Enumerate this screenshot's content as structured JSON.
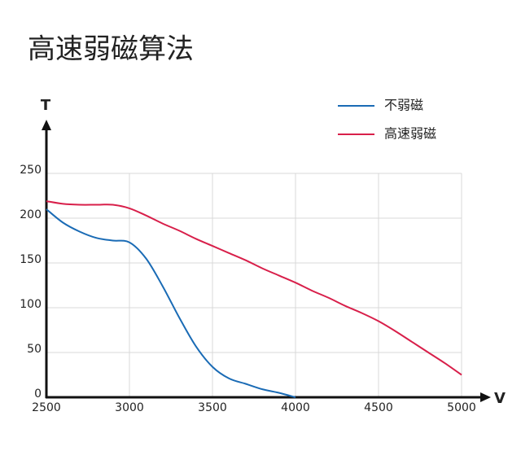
{
  "chart_data": {
    "type": "line",
    "title": "高速弱磁算法",
    "x_label": "V",
    "y_label": "T",
    "x": [
      2500,
      2600,
      2700,
      2800,
      2900,
      3000,
      3100,
      3200,
      3300,
      3400,
      3500,
      3600,
      3700,
      3800,
      3900,
      4000,
      4100,
      4200,
      4300,
      4400,
      4500,
      4600,
      4700,
      4800,
      4900,
      5000
    ],
    "series": [
      {
        "name": "不弱磁",
        "color": "#1a6bb5",
        "values": [
          210,
          195,
          185,
          178,
          175,
          173,
          155,
          124,
          89,
          57,
          34,
          21,
          15,
          9,
          5,
          0,
          null,
          null,
          null,
          null,
          null,
          null,
          null,
          null,
          null,
          null
        ]
      },
      {
        "name": "高速弱磁",
        "color": "#d81f4a",
        "values": [
          219,
          216,
          215,
          215,
          215,
          211,
          203,
          194,
          186,
          177,
          169,
          161,
          153,
          144,
          136,
          128,
          119,
          111,
          102,
          94,
          85,
          74,
          62,
          50,
          38,
          25
        ]
      }
    ],
    "xlim": [
      2500,
      5000
    ],
    "ylim": [
      0,
      250
    ],
    "xticks": [
      2500,
      3000,
      3500,
      4000,
      4500,
      5000
    ],
    "yticks": [
      0,
      50,
      100,
      150,
      200,
      250
    ],
    "grid": true,
    "legend": "top-right"
  }
}
